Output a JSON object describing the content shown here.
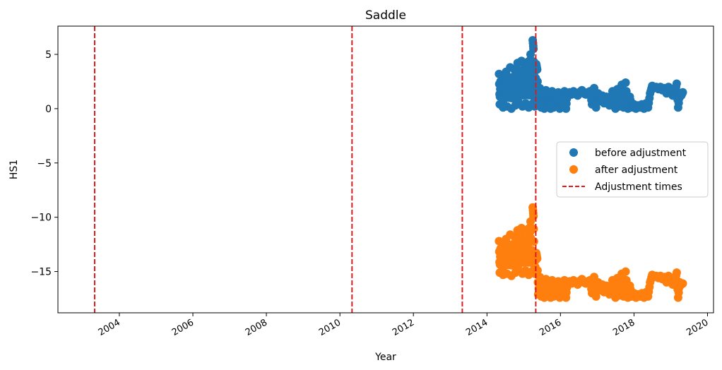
{
  "chart_data": {
    "type": "scatter",
    "title": "Saddle",
    "xlabel": "Year",
    "ylabel": "HS1",
    "x_axis": "date",
    "xlim": [
      "2002-05-01",
      "2020-03-01"
    ],
    "ylim": [
      -18.8,
      7.6
    ],
    "xticks": [
      "2004",
      "2006",
      "2008",
      "2010",
      "2012",
      "2014",
      "2016",
      "2018",
      "2020"
    ],
    "yticks": [
      5,
      0,
      -5,
      -10,
      -15
    ],
    "ytick_labels": [
      "5",
      "0",
      "−5",
      "−10",
      "−15"
    ],
    "grid": false,
    "legend_position": "center-right",
    "adjustment_times": [
      "2003-05-01",
      "2010-05-01",
      "2013-05-01",
      "2015-05-01"
    ],
    "series": [
      {
        "name": "before adjustment",
        "color": "#1f77b4",
        "marker": "circle",
        "points": [
          [
            "2014-05-01",
            3.2
          ],
          [
            "2014-05-08",
            0.4
          ],
          [
            "2014-05-15",
            2.5
          ],
          [
            "2014-05-22",
            1.1
          ],
          [
            "2014-06-01",
            3.0
          ],
          [
            "2014-06-10",
            0.1
          ],
          [
            "2014-06-20",
            2.2
          ],
          [
            "2014-07-01",
            1.6
          ],
          [
            "2014-07-10",
            3.4
          ],
          [
            "2014-07-20",
            0.2
          ],
          [
            "2014-08-01",
            2.7
          ],
          [
            "2014-08-10",
            1.0
          ],
          [
            "2014-08-20",
            3.8
          ],
          [
            "2014-09-01",
            0.0
          ],
          [
            "2014-09-10",
            2.9
          ],
          [
            "2014-09-20",
            1.5
          ],
          [
            "2014-10-01",
            3.6
          ],
          [
            "2014-10-10",
            0.3
          ],
          [
            "2014-10-20",
            2.4
          ],
          [
            "2014-11-01",
            4.2
          ],
          [
            "2014-11-10",
            0.6
          ],
          [
            "2014-11-20",
            3.1
          ],
          [
            "2014-12-01",
            1.2
          ],
          [
            "2014-12-10",
            4.4
          ],
          [
            "2014-12-20",
            0.2
          ],
          [
            "2015-01-01",
            3.3
          ],
          [
            "2015-01-10",
            4.0
          ],
          [
            "2015-01-20",
            0.5
          ],
          [
            "2015-02-01",
            2.8
          ],
          [
            "2015-02-10",
            4.3
          ],
          [
            "2015-02-20",
            0.1
          ],
          [
            "2015-03-01",
            3.5
          ],
          [
            "2015-03-10",
            5.0
          ],
          [
            "2015-03-20",
            0.4
          ],
          [
            "2015-04-01",
            6.3
          ],
          [
            "2015-04-08",
            5.5
          ],
          [
            "2015-04-15",
            2.0
          ],
          [
            "2015-04-22",
            0.2
          ],
          [
            "2015-05-05",
            4.1
          ],
          [
            "2015-05-15",
            3.6
          ],
          [
            "2015-05-25",
            0.3
          ],
          [
            "2015-06-10",
            1.9
          ],
          [
            "2015-06-25",
            0.1
          ],
          [
            "2015-07-10",
            1.5
          ],
          [
            "2015-07-25",
            0.0
          ],
          [
            "2015-08-10",
            1.7
          ],
          [
            "2015-08-25",
            0.2
          ],
          [
            "2015-09-10",
            1.4
          ],
          [
            "2015-09-25",
            0.0
          ],
          [
            "2015-10-10",
            1.6
          ],
          [
            "2015-10-25",
            0.1
          ],
          [
            "2015-11-10",
            1.3
          ],
          [
            "2015-11-25",
            0.3
          ],
          [
            "2015-12-10",
            1.5
          ],
          [
            "2015-12-25",
            0.0
          ],
          [
            "2016-01-10",
            1.2
          ],
          [
            "2016-01-25",
            0.2
          ],
          [
            "2016-02-10",
            1.6
          ],
          [
            "2016-02-25",
            0.0
          ],
          [
            "2016-03-10",
            1.4
          ],
          [
            "2016-04-01",
            1.5
          ],
          [
            "2016-04-20",
            1.3
          ],
          [
            "2016-05-10",
            1.6
          ],
          [
            "2016-06-01",
            1.4
          ],
          [
            "2016-06-20",
            1.2
          ],
          [
            "2016-07-10",
            1.5
          ],
          [
            "2016-08-01",
            1.7
          ],
          [
            "2016-08-20",
            1.4
          ],
          [
            "2016-09-10",
            1.3
          ],
          [
            "2016-10-01",
            1.5
          ],
          [
            "2016-10-20",
            1.6
          ],
          [
            "2016-11-10",
            0.4
          ],
          [
            "2016-12-01",
            1.9
          ],
          [
            "2016-12-20",
            0.1
          ],
          [
            "2017-01-10",
            1.4
          ],
          [
            "2017-02-01",
            0.7
          ],
          [
            "2017-02-20",
            1.2
          ],
          [
            "2017-03-10",
            0.5
          ],
          [
            "2017-04-01",
            1.1
          ],
          [
            "2017-05-01",
            0.3
          ],
          [
            "2017-06-01",
            1.6
          ],
          [
            "2017-07-01",
            0.0
          ],
          [
            "2017-07-20",
            1.8
          ],
          [
            "2017-08-10",
            0.2
          ],
          [
            "2017-09-01",
            2.2
          ],
          [
            "2017-09-20",
            0.1
          ],
          [
            "2017-10-10",
            2.4
          ],
          [
            "2017-11-01",
            0.0
          ],
          [
            "2017-11-20",
            1.1
          ],
          [
            "2017-12-10",
            0.1
          ],
          [
            "2018-01-01",
            0.4
          ],
          [
            "2018-01-20",
            0.0
          ],
          [
            "2018-02-10",
            0.3
          ],
          [
            "2018-03-01",
            0.1
          ],
          [
            "2018-03-20",
            0.4
          ],
          [
            "2018-04-10",
            0.0
          ],
          [
            "2018-05-01",
            0.5
          ],
          [
            "2018-05-20",
            0.1
          ],
          [
            "2018-06-10",
            1.4
          ],
          [
            "2018-07-01",
            2.1
          ],
          [
            "2018-07-20",
            1.9
          ],
          [
            "2018-08-10",
            2.0
          ],
          [
            "2018-09-01",
            1.8
          ],
          [
            "2018-09-20",
            2.0
          ],
          [
            "2018-10-10",
            1.7
          ],
          [
            "2018-11-01",
            1.9
          ],
          [
            "2018-11-20",
            1.4
          ],
          [
            "2018-12-10",
            2.0
          ],
          [
            "2019-01-01",
            1.6
          ],
          [
            "2019-01-20",
            1.2
          ],
          [
            "2019-02-10",
            1.5
          ],
          [
            "2019-03-01",
            2.3
          ],
          [
            "2019-03-15",
            0.1
          ],
          [
            "2019-04-01",
            1.4
          ],
          [
            "2019-04-15",
            1.2
          ],
          [
            "2019-05-01",
            1.5
          ]
        ]
      },
      {
        "name": "after adjustment",
        "color": "#ff7f0e",
        "marker": "circle",
        "points": [
          [
            "2014-05-01",
            -12.2
          ],
          [
            "2014-05-08",
            -15.1
          ],
          [
            "2014-05-15",
            -12.9
          ],
          [
            "2014-05-22",
            -14.4
          ],
          [
            "2014-06-01",
            -12.4
          ],
          [
            "2014-06-10",
            -15.3
          ],
          [
            "2014-06-20",
            -13.2
          ],
          [
            "2014-07-01",
            -13.8
          ],
          [
            "2014-07-10",
            -12.0
          ],
          [
            "2014-07-20",
            -15.2
          ],
          [
            "2014-08-01",
            -12.7
          ],
          [
            "2014-08-10",
            -14.4
          ],
          [
            "2014-08-20",
            -11.6
          ],
          [
            "2014-09-01",
            -15.4
          ],
          [
            "2014-09-10",
            -12.5
          ],
          [
            "2014-09-20",
            -13.9
          ],
          [
            "2014-10-01",
            -11.8
          ],
          [
            "2014-10-10",
            -15.1
          ],
          [
            "2014-10-20",
            -13.0
          ],
          [
            "2014-11-01",
            -11.2
          ],
          [
            "2014-11-10",
            -14.8
          ],
          [
            "2014-11-20",
            -12.3
          ],
          [
            "2014-12-01",
            -14.2
          ],
          [
            "2014-12-10",
            -11.0
          ],
          [
            "2014-12-20",
            -15.2
          ],
          [
            "2015-01-01",
            -12.1
          ],
          [
            "2015-01-10",
            -11.4
          ],
          [
            "2015-01-20",
            -14.9
          ],
          [
            "2015-02-01",
            -12.6
          ],
          [
            "2015-02-10",
            -11.1
          ],
          [
            "2015-02-20",
            -15.3
          ],
          [
            "2015-03-01",
            -11.9
          ],
          [
            "2015-03-10",
            -10.4
          ],
          [
            "2015-03-20",
            -15.0
          ],
          [
            "2015-04-01",
            -9.1
          ],
          [
            "2015-04-08",
            -9.9
          ],
          [
            "2015-04-15",
            -13.4
          ],
          [
            "2015-04-22",
            -15.2
          ],
          [
            "2015-05-05",
            -13.3
          ],
          [
            "2015-05-15",
            -13.8
          ],
          [
            "2015-05-25",
            -17.1
          ],
          [
            "2015-06-10",
            -15.5
          ],
          [
            "2015-06-25",
            -17.3
          ],
          [
            "2015-07-10",
            -15.9
          ],
          [
            "2015-07-25",
            -17.4
          ],
          [
            "2015-08-10",
            -15.7
          ],
          [
            "2015-08-25",
            -17.2
          ],
          [
            "2015-09-10",
            -16.0
          ],
          [
            "2015-09-25",
            -17.4
          ],
          [
            "2015-10-10",
            -15.8
          ],
          [
            "2015-10-25",
            -17.3
          ],
          [
            "2015-11-10",
            -16.1
          ],
          [
            "2015-11-25",
            -17.1
          ],
          [
            "2015-12-10",
            -15.9
          ],
          [
            "2015-12-25",
            -17.4
          ],
          [
            "2016-01-10",
            -16.2
          ],
          [
            "2016-01-25",
            -17.2
          ],
          [
            "2016-02-10",
            -15.8
          ],
          [
            "2016-02-25",
            -17.4
          ],
          [
            "2016-03-10",
            -16.0
          ],
          [
            "2016-04-01",
            -15.9
          ],
          [
            "2016-04-20",
            -16.1
          ],
          [
            "2016-05-10",
            -15.8
          ],
          [
            "2016-06-01",
            -16.0
          ],
          [
            "2016-06-20",
            -16.2
          ],
          [
            "2016-07-10",
            -15.9
          ],
          [
            "2016-08-01",
            -15.7
          ],
          [
            "2016-08-20",
            -16.0
          ],
          [
            "2016-09-10",
            -16.1
          ],
          [
            "2016-10-01",
            -15.9
          ],
          [
            "2016-10-20",
            -15.8
          ],
          [
            "2016-11-10",
            -17.0
          ],
          [
            "2016-12-01",
            -15.5
          ],
          [
            "2016-12-20",
            -17.3
          ],
          [
            "2017-01-10",
            -16.0
          ],
          [
            "2017-02-01",
            -16.7
          ],
          [
            "2017-02-20",
            -16.2
          ],
          [
            "2017-03-10",
            -16.9
          ],
          [
            "2017-04-01",
            -16.3
          ],
          [
            "2017-05-01",
            -17.1
          ],
          [
            "2017-06-01",
            -15.8
          ],
          [
            "2017-07-01",
            -17.4
          ],
          [
            "2017-07-20",
            -15.6
          ],
          [
            "2017-08-10",
            -17.2
          ],
          [
            "2017-09-01",
            -15.2
          ],
          [
            "2017-09-20",
            -17.3
          ],
          [
            "2017-10-10",
            -15.0
          ],
          [
            "2017-11-01",
            -17.4
          ],
          [
            "2017-11-20",
            -16.3
          ],
          [
            "2017-12-10",
            -17.3
          ],
          [
            "2018-01-01",
            -17.0
          ],
          [
            "2018-01-20",
            -17.4
          ],
          [
            "2018-02-10",
            -17.1
          ],
          [
            "2018-03-01",
            -17.3
          ],
          [
            "2018-03-20",
            -17.0
          ],
          [
            "2018-04-10",
            -17.4
          ],
          [
            "2018-05-01",
            -16.9
          ],
          [
            "2018-05-20",
            -17.3
          ],
          [
            "2018-06-10",
            -16.0
          ],
          [
            "2018-07-01",
            -15.3
          ],
          [
            "2018-07-20",
            -15.5
          ],
          [
            "2018-08-10",
            -15.4
          ],
          [
            "2018-09-01",
            -15.6
          ],
          [
            "2018-09-20",
            -15.4
          ],
          [
            "2018-10-10",
            -15.7
          ],
          [
            "2018-11-01",
            -15.5
          ],
          [
            "2018-11-20",
            -16.0
          ],
          [
            "2018-12-10",
            -15.4
          ],
          [
            "2019-01-01",
            -15.8
          ],
          [
            "2019-01-20",
            -16.2
          ],
          [
            "2019-02-10",
            -15.9
          ],
          [
            "2019-03-01",
            -15.1
          ],
          [
            "2019-03-15",
            -17.4
          ],
          [
            "2019-04-01",
            -16.0
          ],
          [
            "2019-04-15",
            -16.2
          ],
          [
            "2019-05-01",
            -16.1
          ]
        ]
      },
      {
        "name": "Adjustment times",
        "color": "#e31a1c",
        "marker": "dashed-line"
      }
    ]
  }
}
